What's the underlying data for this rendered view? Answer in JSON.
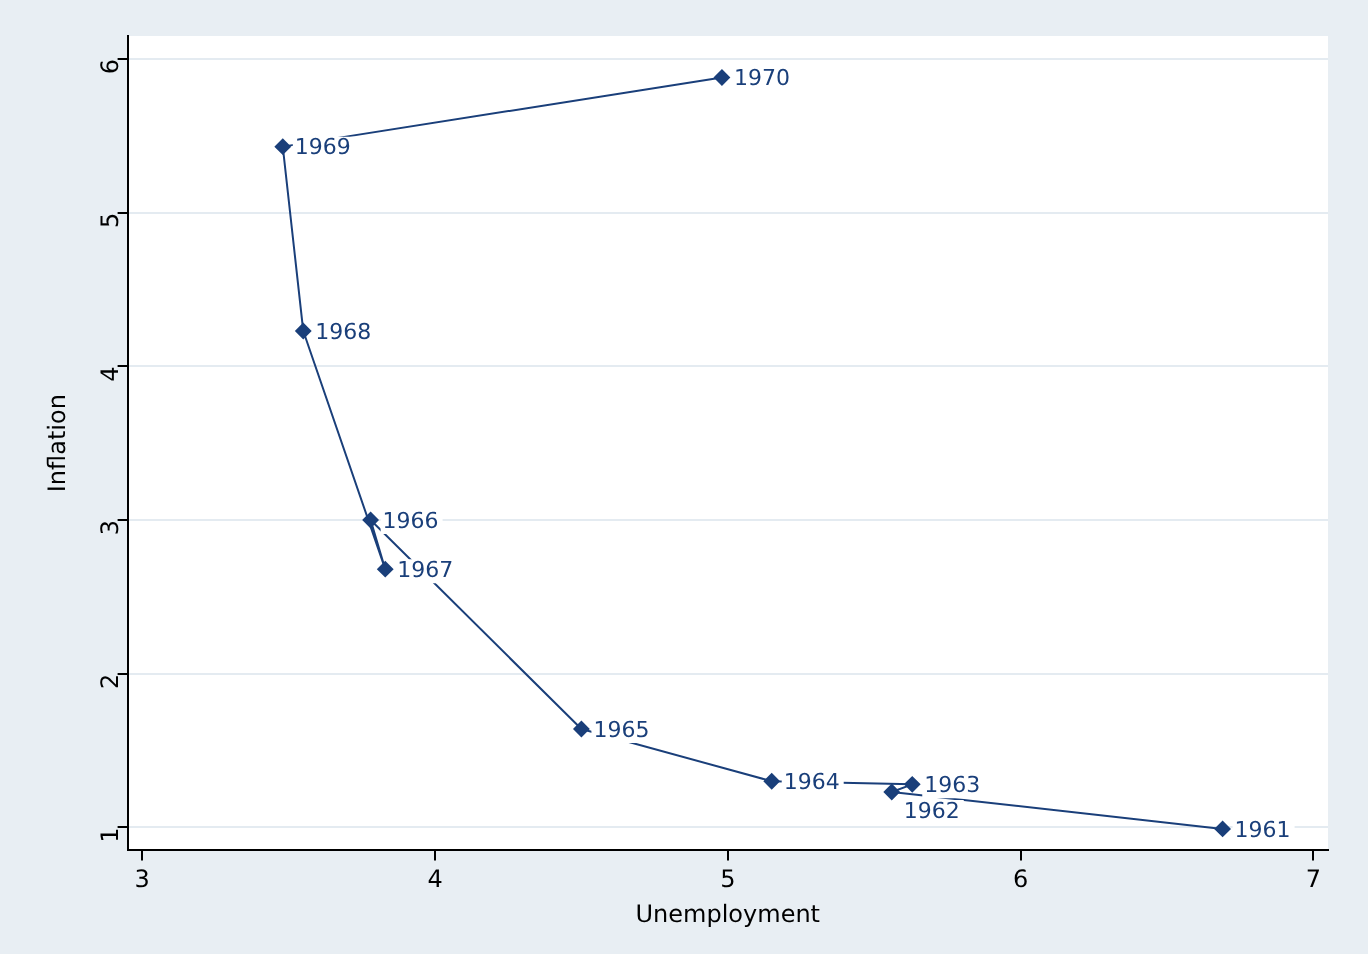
{
  "chart_data": {
    "type": "line",
    "xlabel": "Unemployment",
    "ylabel": "Inflation",
    "series": [
      {
        "color": "#1a3f7a",
        "x": [
          6.69,
          5.56,
          5.63,
          5.15,
          4.5,
          3.78,
          3.83,
          3.55,
          3.48,
          4.98
        ],
        "values": [
          0.99,
          1.23,
          1.28,
          1.3,
          1.64,
          3.0,
          2.68,
          4.23,
          5.43,
          5.88
        ]
      }
    ],
    "xlim": [
      2.95,
      7.05
    ],
    "xticks": [
      3,
      4,
      5,
      6,
      7
    ],
    "ylim": [
      0.85,
      6.15
    ],
    "yticks": [
      1,
      2,
      3,
      4,
      5,
      6
    ],
    "grid": "y",
    "marker": "diamond",
    "line_style": "solid",
    "legend": false,
    "annotations": [
      {
        "text": "1961",
        "x": 6.69,
        "y": 0.99
      },
      {
        "text": "1962",
        "x": 5.56,
        "y": 1.23
      },
      {
        "text": "1963",
        "x": 5.63,
        "y": 1.28
      },
      {
        "text": "1964",
        "x": 5.15,
        "y": 1.3
      },
      {
        "text": "1965",
        "x": 4.5,
        "y": 1.64
      },
      {
        "text": "1966",
        "x": 3.78,
        "y": 3.0
      },
      {
        "text": "1967",
        "x": 3.83,
        "y": 2.68
      },
      {
        "text": "1968",
        "x": 3.55,
        "y": 4.23
      },
      {
        "text": "1969",
        "x": 3.48,
        "y": 5.43
      },
      {
        "text": "1970",
        "x": 4.98,
        "y": 5.88
      }
    ]
  }
}
